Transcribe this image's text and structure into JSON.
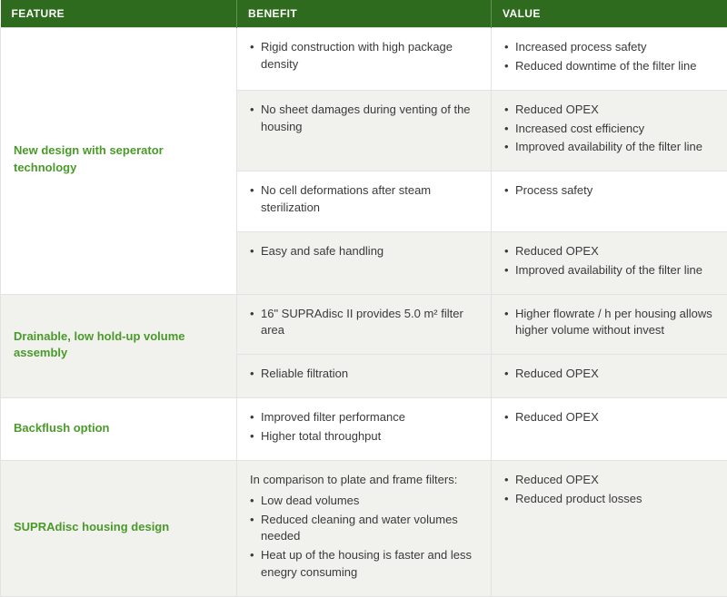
{
  "colors": {
    "header_bg": "#2e6b1e",
    "header_text": "#ffffff",
    "feature_text": "#4a9a2a",
    "body_text": "#3a3a3a",
    "row_alt_bg": "#f1f1ee",
    "row_plain_bg": "#ffffff",
    "border": "#e3e3e3"
  },
  "headers": {
    "feature": "FEATURE",
    "benefit": "BENEFIT",
    "value": "VALUE"
  },
  "groups": [
    {
      "feature": "New design with seperator technology",
      "rows": [
        {
          "alt": false,
          "benefit": [
            "Rigid construction with high package density"
          ],
          "value": [
            "Increased process safety",
            "Reduced downtime of the filter line"
          ]
        },
        {
          "alt": true,
          "benefit": [
            "No sheet damages during venting of the housing"
          ],
          "value": [
            "Reduced OPEX",
            "Increased cost efficiency",
            "Improved availability of the filter line"
          ]
        },
        {
          "alt": false,
          "benefit": [
            "No cell deformations after steam sterilization"
          ],
          "value": [
            "Process safety"
          ]
        },
        {
          "alt": true,
          "benefit": [
            "Easy and safe handling"
          ],
          "value": [
            "Reduced OPEX",
            "Improved availability of the filter line"
          ]
        }
      ]
    },
    {
      "feature": "Drainable, low hold-up volume assembly",
      "rows": [
        {
          "alt": true,
          "benefit": [
            "16\" SUPRAdisc II provides 5.0 m² filter area"
          ],
          "value": [
            "Higher flowrate / h per housing allows higher volume without invest"
          ]
        },
        {
          "alt": true,
          "benefit": [
            "Reliable filtration"
          ],
          "value": [
            "Reduced OPEX"
          ]
        }
      ]
    },
    {
      "feature": "Backflush option",
      "rows": [
        {
          "alt": false,
          "benefit": [
            "Improved filter performance",
            "Higher total throughput"
          ],
          "value": [
            "Reduced OPEX"
          ]
        }
      ]
    },
    {
      "feature": "SUPRAdisc housing design",
      "rows": [
        {
          "alt": true,
          "benefit_lead": "In comparison to plate and frame filters:",
          "benefit": [
            "Low dead volumes",
            "Reduced cleaning and water volumes needed",
            "Heat up of the housing is faster and less enegry consuming"
          ],
          "value": [
            "Reduced OPEX",
            "Reduced product losses"
          ]
        }
      ]
    }
  ]
}
